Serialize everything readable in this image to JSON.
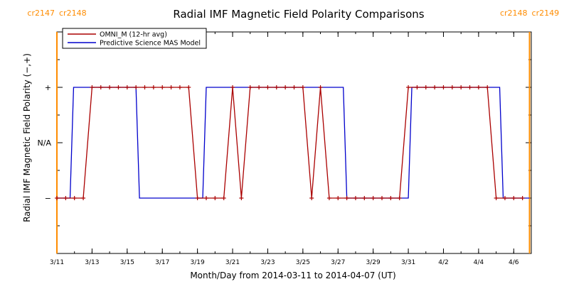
{
  "chart_data": {
    "type": "line",
    "title": "Radial IMF Magnetic Field Polarity Comparisons",
    "xlabel": "Month/Day from 2014-03-11 to 2014-04-07 (UT)",
    "ylabel": "Radial IMF Magnetic Field Polarity (−,+)",
    "x_unit": "days",
    "xlim": [
      0,
      27
    ],
    "ylim": [
      -2,
      2
    ],
    "x_ticks": [
      {
        "x": 0,
        "label": "3/11"
      },
      {
        "x": 2,
        "label": "3/13"
      },
      {
        "x": 4,
        "label": "3/15"
      },
      {
        "x": 6,
        "label": "3/17"
      },
      {
        "x": 8,
        "label": "3/19"
      },
      {
        "x": 10,
        "label": "3/21"
      },
      {
        "x": 12,
        "label": "3/23"
      },
      {
        "x": 14,
        "label": "3/25"
      },
      {
        "x": 16,
        "label": "3/27"
      },
      {
        "x": 18,
        "label": "3/29"
      },
      {
        "x": 20,
        "label": "3/31"
      },
      {
        "x": 22,
        "label": "4/2"
      },
      {
        "x": 24,
        "label": "4/4"
      },
      {
        "x": 26,
        "label": "4/6"
      }
    ],
    "y_ticks": [
      {
        "y": 1,
        "label": "+"
      },
      {
        "y": 0,
        "label": "N/A"
      },
      {
        "y": -1,
        "label": "−"
      }
    ],
    "carrington_rotations": [
      {
        "x": 0,
        "label_left": "cr2147",
        "label_right": "cr2148",
        "color": "#ff8c00"
      },
      {
        "x": 26.9,
        "label_left": "cr2148",
        "label_right": "cr2149",
        "color": "#ff8c00"
      }
    ],
    "legend": {
      "placement": "top-left",
      "entries": [
        {
          "label": "OMNI_M (12-hr avg)",
          "color": "#aa0000"
        },
        {
          "label": "Predictive Science MAS Model",
          "color": "#0000cc"
        }
      ]
    },
    "series": [
      {
        "name": "OMNI_M (12-hr avg)",
        "color": "#aa0000",
        "markers": true,
        "points": [
          [
            0,
            -1
          ],
          [
            0.5,
            -1
          ],
          [
            1,
            -1
          ],
          [
            1.5,
            -1
          ],
          [
            2,
            1
          ],
          [
            2.5,
            1
          ],
          [
            3,
            1
          ],
          [
            3.5,
            1
          ],
          [
            4,
            1
          ],
          [
            4.5,
            1
          ],
          [
            5,
            1
          ],
          [
            5.5,
            1
          ],
          [
            6,
            1
          ],
          [
            6.5,
            1
          ],
          [
            7,
            1
          ],
          [
            7.5,
            1
          ],
          [
            8,
            -1
          ],
          [
            8.5,
            -1
          ],
          [
            9,
            -1
          ],
          [
            9.5,
            -1
          ],
          [
            10,
            1
          ],
          [
            10.5,
            -1
          ],
          [
            11,
            1
          ],
          [
            11.5,
            1
          ],
          [
            12,
            1
          ],
          [
            12.5,
            1
          ],
          [
            13,
            1
          ],
          [
            13.5,
            1
          ],
          [
            14,
            1
          ],
          [
            14.5,
            -1
          ],
          [
            15,
            1
          ],
          [
            15.5,
            -1
          ],
          [
            16,
            -1
          ],
          [
            16.5,
            -1
          ],
          [
            17,
            -1
          ],
          [
            17.5,
            -1
          ],
          [
            18,
            -1
          ],
          [
            18.5,
            -1
          ],
          [
            19,
            -1
          ],
          [
            19.5,
            -1
          ],
          [
            20,
            1
          ],
          [
            20.5,
            1
          ],
          [
            21,
            1
          ],
          [
            21.5,
            1
          ],
          [
            22,
            1
          ],
          [
            22.5,
            1
          ],
          [
            23,
            1
          ],
          [
            23.5,
            1
          ],
          [
            24,
            1
          ],
          [
            24.5,
            1
          ],
          [
            25,
            -1
          ],
          [
            25.5,
            -1
          ],
          [
            26,
            -1
          ],
          [
            26.5,
            -1
          ]
        ]
      },
      {
        "name": "Predictive Science MAS Model",
        "color": "#0000cc",
        "markers": false,
        "points": [
          [
            0,
            -1
          ],
          [
            0.75,
            -1
          ],
          [
            0.95,
            1
          ],
          [
            4.5,
            1
          ],
          [
            4.7,
            -1
          ],
          [
            8.3,
            -1
          ],
          [
            8.5,
            1
          ],
          [
            16.3,
            1
          ],
          [
            16.5,
            -1
          ],
          [
            20,
            -1
          ],
          [
            20.2,
            1
          ],
          [
            25.2,
            1
          ],
          [
            25.4,
            -1
          ],
          [
            26.9,
            -1
          ]
        ]
      }
    ]
  }
}
